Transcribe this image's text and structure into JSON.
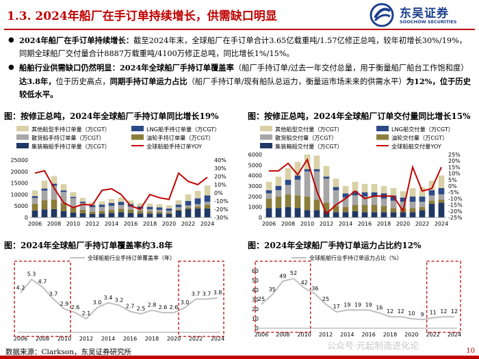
{
  "header": {
    "title": "1.3. 2024年船厂在手订单持续增长，供需缺口明显",
    "logo_cn": "东吴证券",
    "logo_en": "SOOCHOW SECURITIES"
  },
  "bullets": [
    {
      "bold": "2024年船厂在手订单持续增长：",
      "text": "截至2024年末，全球船厂在手订单合计3.65亿载重吨/1.57亿修正总吨，较年初增长30%/19%，同期全球船厂交付量合计8887万载重吨/4100万修正总吨，同比增长1%/15%。"
    },
    {
      "bold": "船舶行业供需缺口仍然明显：2024年全球船厂手持订单覆盖率",
      "text": "（船厂手持订单/过去一年交付总量，用于衡量船厂船台工作饱和度）",
      "bold2": "达3.8年，",
      "text2": "位于历史高点，",
      "bold3": "同期手持订单运力占比",
      "text3": "（船厂手持订单/现有船队总运力，衡量运市场未来的供需水平）",
      "bold4": "为12%，位于历史较低水平。"
    }
  ],
  "captions": {
    "c1": "图：按修正总吨，2024年全球船厂手持订单同比增长19%",
    "c2": "图：按修正总吨，2024年全球船厂订单交付量同比增长15%",
    "c3": "图：2024年全球船厂手持订单覆盖率约3.8年",
    "c4": "图：2024年全球船厂手持订单运力占比约12%"
  },
  "colors": {
    "brand_red": "#c00000",
    "brand_blue": "#1a3e8c",
    "other": "#d9d1a6",
    "lng": "#2b4a87",
    "bulk_gray": "#a6a6a6",
    "tanker": "#8b7d3a",
    "container": "#1f3864",
    "yoy": "#c00000",
    "box": "#c00000",
    "line_gray": "#bfbfbf"
  },
  "chart_data": [
    {
      "type": "bar",
      "title": "按修正总吨，2024年全球船厂手持订单同比增长19%",
      "stacked": true,
      "categories": [
        "2006",
        "2007",
        "2008",
        "2009",
        "2010",
        "2011",
        "2012",
        "2013",
        "2014",
        "2015",
        "2016",
        "2017",
        "2018",
        "2019",
        "2020",
        "2021",
        "2022",
        "2023",
        "2024"
      ],
      "xticks": [
        "2006",
        "2008",
        "2010",
        "2012",
        "2014",
        "2016",
        "2018",
        "2020",
        "2022",
        "2024"
      ],
      "series": [
        {
          "name": "集装箱船手持订单量（万CGT）",
          "values": [
            3000,
            3500,
            3600,
            2800,
            2100,
            1800,
            1500,
            1700,
            2000,
            2300,
            2000,
            1700,
            1600,
            1700,
            1500,
            3000,
            3700,
            3900,
            3900
          ]
        },
        {
          "name": "油轮手持订单量（万CGT）",
          "values": [
            3000,
            4000,
            4200,
            3300,
            2200,
            1500,
            1000,
            1100,
            1300,
            1500,
            1400,
            1100,
            1000,
            800,
            700,
            500,
            600,
            900,
            1600
          ]
        },
        {
          "name": "散货船手持订单量（万CGT）",
          "values": [
            2500,
            4200,
            6000,
            5000,
            4200,
            3000,
            2000,
            1800,
            1800,
            1600,
            1300,
            1100,
            1000,
            800,
            700,
            1000,
            900,
            1000,
            1300
          ]
        },
        {
          "name": "LNG船手持订单量（万CGT）",
          "values": [
            800,
            900,
            900,
            700,
            500,
            600,
            800,
            1000,
            1200,
            1400,
            1100,
            900,
            1000,
            1100,
            1000,
            1100,
            2000,
            2500,
            2800
          ]
        },
        {
          "name": "其他船型手持订单量（万CGT）",
          "values": [
            2500,
            3400,
            3300,
            2700,
            2000,
            1600,
            1300,
            1400,
            1700,
            1900,
            1600,
            1400,
            1400,
            1400,
            1400,
            1900,
            2800,
            3300,
            4300
          ]
        }
      ],
      "line": {
        "name": "全球船舶手持订单YOY",
        "values": [
          24,
          27,
          6,
          -12,
          -18,
          -14,
          -15,
          3,
          5,
          -2,
          -16,
          -20,
          -2,
          -6,
          -8,
          24,
          14,
          10,
          19
        ]
      },
      "ylim": [
        0,
        25000
      ],
      "yticks": [
        0,
        5000,
        10000,
        15000,
        20000,
        25000
      ],
      "y2lim": [
        -30,
        40
      ],
      "y2ticks": [
        "40%",
        "30%",
        "20%",
        "10%",
        "0%",
        "-10%",
        "-20%",
        "-30%"
      ]
    },
    {
      "type": "bar",
      "title": "按修正总吨，2024年全球船厂订单交付量同比增长15%",
      "stacked": true,
      "categories": [
        "2006",
        "2007",
        "2008",
        "2009",
        "2010",
        "2011",
        "2012",
        "2013",
        "2014",
        "2015",
        "2016",
        "2017",
        "2018",
        "2019",
        "2020",
        "2021",
        "2022",
        "2023",
        "2024"
      ],
      "xticks": [
        "2006",
        "2008",
        "2010",
        "2012",
        "2014",
        "2016",
        "2018",
        "2020",
        "2022",
        "2024"
      ],
      "series": [
        {
          "name": "集装箱船交付量（万CGT）",
          "values": [
            900,
            900,
            1000,
            900,
            700,
            700,
            600,
            500,
            500,
            600,
            500,
            500,
            500,
            500,
            500,
            500,
            700,
            1300,
            1400
          ]
        },
        {
          "name": "油轮交付量（万CGT）",
          "values": [
            900,
            1100,
            1200,
            1200,
            1300,
            1000,
            800,
            600,
            500,
            600,
            700,
            700,
            600,
            400,
            400,
            400,
            300,
            300,
            300
          ]
        },
        {
          "name": "散货船交付量（万CGT）",
          "values": [
            500,
            600,
            900,
            1500,
            2400,
            2700,
            2300,
            1500,
            900,
            900,
            800,
            800,
            700,
            700,
            600,
            600,
            500,
            500,
            500
          ]
        },
        {
          "name": "LNG船交付量（万CGT）",
          "values": [
            300,
            400,
            500,
            400,
            200,
            200,
            200,
            300,
            400,
            400,
            400,
            400,
            500,
            500,
            400,
            500,
            500,
            500,
            600
          ]
        },
        {
          "name": "其他船型交付量（万CGT）",
          "values": [
            800,
            900,
            1100,
            1300,
            1400,
            1300,
            1000,
            800,
            700,
            900,
            800,
            800,
            700,
            700,
            600,
            800,
            900,
            900,
            1200
          ]
        }
      ],
      "line": {
        "name": "全球船舶交付量YOY",
        "values": [
          12,
          12,
          18,
          9,
          21,
          -4,
          -22,
          -15,
          -10,
          -4,
          -10,
          -8,
          -8,
          -8,
          -20,
          15,
          -4,
          -2,
          15
        ]
      },
      "ylim": [
        0,
        6000
      ],
      "yticks": [
        0,
        1000,
        2000,
        3000,
        4000,
        5000,
        6000
      ],
      "y2lim": [
        -25,
        25
      ],
      "y2ticks": [
        "25%",
        "20%",
        "15%",
        "10%",
        "5%",
        "0%",
        "-5%",
        "-10%",
        "-15%",
        "-20%",
        "-25%"
      ]
    },
    {
      "type": "line",
      "title": "2024年全球船厂手持订单覆盖率约3.8年",
      "series_name": "全球船舶行业手持订单覆盖率（年）",
      "x": [
        "2006",
        "2007",
        "2008",
        "2009",
        "2010",
        "2011",
        "2012",
        "2013",
        "2014",
        "2015",
        "2016",
        "2017",
        "2018",
        "2019",
        "2020",
        "2021",
        "2022",
        "2023",
        "2024"
      ],
      "values": [
        4.2,
        5.3,
        4.7,
        3.7,
        2.9,
        2.6,
        2.1,
        3.0,
        3.4,
        3.2,
        2.7,
        2.5,
        2.8,
        2.6,
        2.6,
        3.0,
        3.7,
        3.7,
        3.8
      ],
      "labels": [
        "4.2",
        "5.3",
        "4.7",
        "3.7",
        "2.9",
        "2.6",
        "2.1",
        "3.0",
        "3.4",
        "3.2",
        "2.7",
        "2.5",
        "2.8",
        "2.6",
        "2.6",
        "3.0",
        "3.7",
        "3.7",
        "3.8"
      ],
      "xticks": [
        "2006",
        "2008",
        "2010",
        "2012",
        "2014",
        "2016",
        "2018",
        "2020",
        "2022",
        "2024"
      ],
      "ylim": [
        1,
        6
      ]
    },
    {
      "type": "line",
      "title": "2024年全球船厂手持订单运力占比约12%",
      "series_name": "全球船舶行业手持订单运力占比（%）",
      "x": [
        "2006",
        "2007",
        "2008",
        "2009",
        "2010",
        "2011",
        "2012",
        "2013",
        "2014",
        "2015",
        "2016",
        "2017",
        "2018",
        "2019",
        "2020",
        "2021",
        "2022",
        "2023",
        "2024"
      ],
      "values": [
        25,
        35,
        49,
        52,
        42,
        36,
        25,
        17,
        19,
        19,
        19,
        16,
        12,
        12,
        10,
        9,
        11,
        12,
        12
      ],
      "labels": [
        "25",
        "35",
        "49",
        "52",
        "42",
        "36",
        "25",
        "17",
        "19",
        "19",
        "19",
        "16",
        "12",
        "12",
        "10",
        "9",
        "11",
        "12",
        "12"
      ],
      "xticks": [
        "2006",
        "2008",
        "2010",
        "2012",
        "2014",
        "2016",
        "2018",
        "2020",
        "2022",
        "2024"
      ],
      "ylim": [
        0,
        60
      ],
      "yticks": [
        "0",
        "10",
        "20",
        "30",
        "40",
        "50",
        "60"
      ]
    }
  ],
  "source": "数据来源：Clarkson，东吴证券研究所",
  "watermark": "公众号·元起制造进化论",
  "page_number": "10"
}
